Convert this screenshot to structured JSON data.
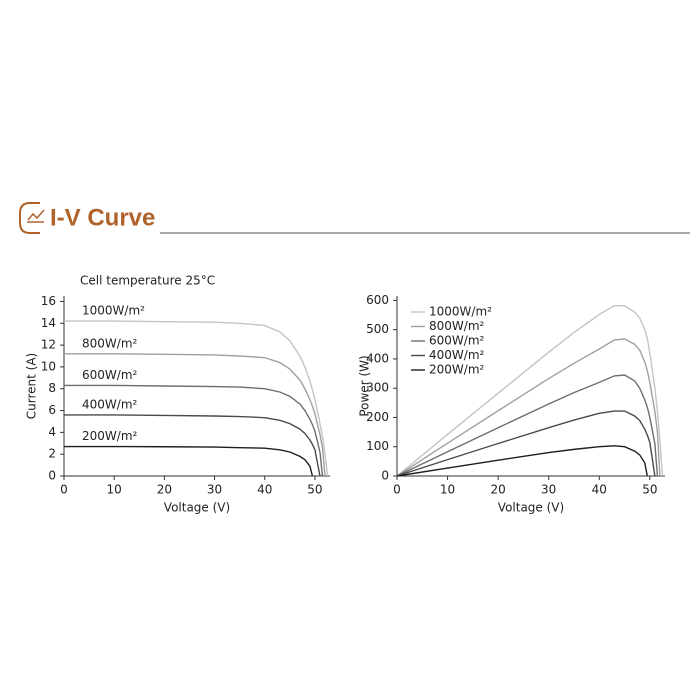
{
  "header": {
    "title": "I-V Curve"
  },
  "chart_data": [
    {
      "type": "line",
      "annotation": "Cell temperature 25°C",
      "xlabel": "Voltage (V)",
      "ylabel": "Current (A)",
      "legend": "inline",
      "x": [
        0,
        10,
        20,
        30,
        35,
        40,
        43,
        45,
        47,
        48,
        49,
        49.5,
        50,
        51,
        51.5,
        52,
        52.5
      ],
      "xlim": [
        0,
        53
      ],
      "ylim": [
        0,
        16.5
      ],
      "xticks": [
        0,
        10,
        20,
        30,
        40,
        50
      ],
      "yticks": [
        0,
        2,
        4,
        6,
        8,
        10,
        12,
        14,
        16
      ],
      "series": [
        {
          "name": "1000W/m²",
          "color": "#c4c4c4",
          "values": [
            14.2,
            14.2,
            14.15,
            14.1,
            14.0,
            13.8,
            13.2,
            12.4,
            11.0,
            10.0,
            8.7,
            7.9,
            7.0,
            4.8,
            3.6,
            2.0,
            0
          ]
        },
        {
          "name": "800W/m²",
          "color": "#a0a0a0",
          "values": [
            11.2,
            11.2,
            11.15,
            11.1,
            11.0,
            10.85,
            10.4,
            9.8,
            8.8,
            8.0,
            7.0,
            6.4,
            5.7,
            3.8,
            2.6,
            0,
            null
          ]
        },
        {
          "name": "600W/m²",
          "color": "#6e6e6e",
          "values": [
            8.3,
            8.3,
            8.25,
            8.2,
            8.15,
            8.0,
            7.7,
            7.3,
            6.6,
            6.0,
            5.2,
            4.7,
            4.1,
            2.2,
            0,
            null,
            null
          ]
        },
        {
          "name": "400W/m²",
          "color": "#4a4a4a",
          "values": [
            5.6,
            5.6,
            5.55,
            5.5,
            5.45,
            5.35,
            5.1,
            4.8,
            4.3,
            3.9,
            3.3,
            2.9,
            2.4,
            0,
            null,
            null,
            null
          ]
        },
        {
          "name": "200W/m²",
          "color": "#1e1e1e",
          "values": [
            2.7,
            2.7,
            2.68,
            2.65,
            2.6,
            2.55,
            2.4,
            2.2,
            1.8,
            1.5,
            0.9,
            0,
            null,
            null,
            null,
            null,
            null
          ]
        }
      ]
    },
    {
      "type": "line",
      "xlabel": "Voltage (V)",
      "ylabel": "Power (W)",
      "legend": "upper left",
      "x": [
        0,
        10,
        20,
        30,
        35,
        40,
        43,
        45,
        47,
        48,
        49,
        49.5,
        50,
        51,
        51.5,
        52,
        52.5
      ],
      "xlim": [
        0,
        53
      ],
      "ylim": [
        0,
        615
      ],
      "xticks": [
        0,
        10,
        20,
        30,
        40,
        50
      ],
      "yticks": [
        0,
        100,
        200,
        300,
        400,
        500,
        600
      ],
      "series": [
        {
          "name": "1000W/m²",
          "color": "#c4c4c4",
          "values": [
            0,
            142,
            283,
            423,
            490,
            552,
            582,
            582,
            560,
            540,
            500,
            470,
            420,
            300,
            220,
            120,
            0
          ]
        },
        {
          "name": "800W/m²",
          "color": "#a0a0a0",
          "values": [
            0,
            112,
            223,
            333,
            385,
            434,
            465,
            468,
            450,
            430,
            390,
            360,
            320,
            220,
            150,
            0,
            null
          ]
        },
        {
          "name": "600W/m²",
          "color": "#6e6e6e",
          "values": [
            0,
            83,
            165,
            246,
            285,
            320,
            342,
            345,
            325,
            300,
            260,
            235,
            200,
            110,
            0,
            null,
            null
          ]
        },
        {
          "name": "400W/m²",
          "color": "#4a4a4a",
          "values": [
            0,
            56,
            111,
            165,
            191,
            214,
            222,
            222,
            205,
            190,
            160,
            140,
            115,
            0,
            null,
            null,
            null
          ]
        },
        {
          "name": "200W/m²",
          "color": "#1e1e1e",
          "values": [
            0,
            27,
            54,
            80,
            91,
            100,
            103,
            100,
            85,
            72,
            45,
            0,
            null,
            null,
            null,
            null,
            null
          ]
        }
      ]
    }
  ]
}
